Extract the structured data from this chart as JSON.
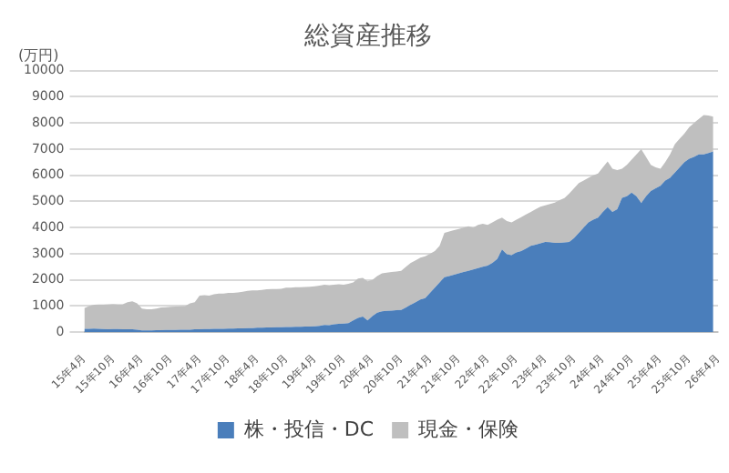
{
  "chart_data": {
    "type": "area",
    "title": "総資産推移",
    "ylabel": "(万円)",
    "stacked": true,
    "legend": "bottom",
    "grid": "y",
    "categories": [
      "15年4月",
      null,
      null,
      null,
      null,
      null,
      "15年10月",
      null,
      null,
      null,
      null,
      null,
      "16年4月",
      null,
      null,
      null,
      null,
      null,
      "16年10月",
      null,
      null,
      null,
      null,
      null,
      "17年4月",
      null,
      null,
      null,
      null,
      null,
      "17年10月",
      null,
      null,
      null,
      null,
      null,
      "18年4月",
      null,
      null,
      null,
      null,
      null,
      "18年10月",
      null,
      null,
      null,
      null,
      null,
      "19年4月",
      null,
      null,
      null,
      null,
      null,
      "19年10月",
      null,
      null,
      null,
      null,
      null,
      "20年4月",
      null,
      null,
      null,
      null,
      null,
      "20年10月",
      null,
      null,
      null,
      null,
      null,
      "21年4月",
      null,
      null,
      null,
      null,
      null,
      "21年10月",
      null,
      null,
      null,
      null,
      null,
      "22年4月",
      null,
      null,
      null,
      null,
      null,
      "22年10月",
      null,
      null,
      null,
      null,
      null,
      "23年4月",
      null,
      null,
      null,
      null,
      null,
      "23年10月",
      null,
      null,
      null,
      null,
      null,
      "24年4月",
      null,
      null,
      null,
      null,
      null,
      "24年10月",
      null,
      null,
      null,
      null,
      null,
      "25年4月",
      null,
      null,
      null,
      null,
      null,
      "25年10月",
      null,
      null,
      null,
      null,
      null,
      "26年4月"
    ],
    "ylim": [
      0,
      10000
    ],
    "yticks": [
      0,
      1000,
      2000,
      3000,
      4000,
      5000,
      6000,
      7000,
      8000,
      9000,
      10000
    ],
    "series": [
      {
        "name": "株・投信・DC",
        "color": "#4a7ebb",
        "values": [
          130,
          130,
          140,
          130,
          120,
          110,
          120,
          120,
          110,
          110,
          110,
          100,
          70,
          70,
          70,
          80,
          80,
          90,
          90,
          90,
          100,
          100,
          100,
          110,
          110,
          120,
          120,
          130,
          130,
          130,
          140,
          140,
          150,
          150,
          160,
          160,
          170,
          170,
          180,
          180,
          190,
          190,
          200,
          200,
          210,
          210,
          220,
          220,
          230,
          240,
          280,
          270,
          300,
          320,
          330,
          350,
          450,
          550,
          600,
          450,
          620,
          750,
          800,
          820,
          830,
          840,
          850,
          950,
          1050,
          1150,
          1250,
          1300,
          1500,
          1700,
          1900,
          2100,
          2150,
          2200,
          2250,
          2300,
          2350,
          2400,
          2450,
          2500,
          2550,
          2650,
          2800,
          3160,
          2980,
          2950,
          3050,
          3100,
          3200,
          3300,
          3350,
          3400,
          3450,
          3440,
          3420,
          3420,
          3430,
          3450,
          3600,
          3800,
          4000,
          4200,
          4300,
          4380,
          4600,
          4780,
          4600,
          4700,
          5140,
          5200,
          5340,
          5200,
          4940,
          5200,
          5400,
          5500,
          5600,
          5800,
          5900,
          6100,
          6300,
          6500,
          6630,
          6700,
          6800,
          6800,
          6850,
          6910,
          null
        ]
      },
      {
        "name": "現金・保険",
        "color": "#bfbfbf",
        "values": [
          790,
          870,
          910,
          930,
          940,
          960,
          960,
          950,
          960,
          1040,
          1070,
          1000,
          830,
          810,
          810,
          820,
          870,
          870,
          880,
          890,
          890,
          900,
          1000,
          1040,
          1290,
          1300,
          1280,
          1320,
          1350,
          1350,
          1360,
          1360,
          1370,
          1400,
          1420,
          1440,
          1430,
          1450,
          1460,
          1470,
          1460,
          1470,
          1500,
          1500,
          1510,
          1510,
          1510,
          1520,
          1530,
          1540,
          1540,
          1530,
          1520,
          1510,
          1490,
          1500,
          1450,
          1500,
          1480,
          1500,
          1380,
          1400,
          1450,
          1460,
          1470,
          1480,
          1500,
          1550,
          1600,
          1600,
          1600,
          1600,
          1500,
          1400,
          1400,
          1700,
          1700,
          1700,
          1700,
          1700,
          1700,
          1600,
          1650,
          1650,
          1550,
          1550,
          1500,
          1220,
          1270,
          1250,
          1250,
          1300,
          1300,
          1300,
          1350,
          1400,
          1400,
          1460,
          1530,
          1630,
          1700,
          1850,
          1900,
          1900,
          1800,
          1700,
          1700,
          1690,
          1700,
          1750,
          1650,
          1500,
          1110,
          1200,
          1260,
          1600,
          2060,
          1500,
          1000,
          800,
          650,
          700,
          900,
          1090,
          1100,
          1100,
          1210,
          1300,
          1350,
          1500,
          1430,
          1330,
          null
        ]
      }
    ]
  }
}
